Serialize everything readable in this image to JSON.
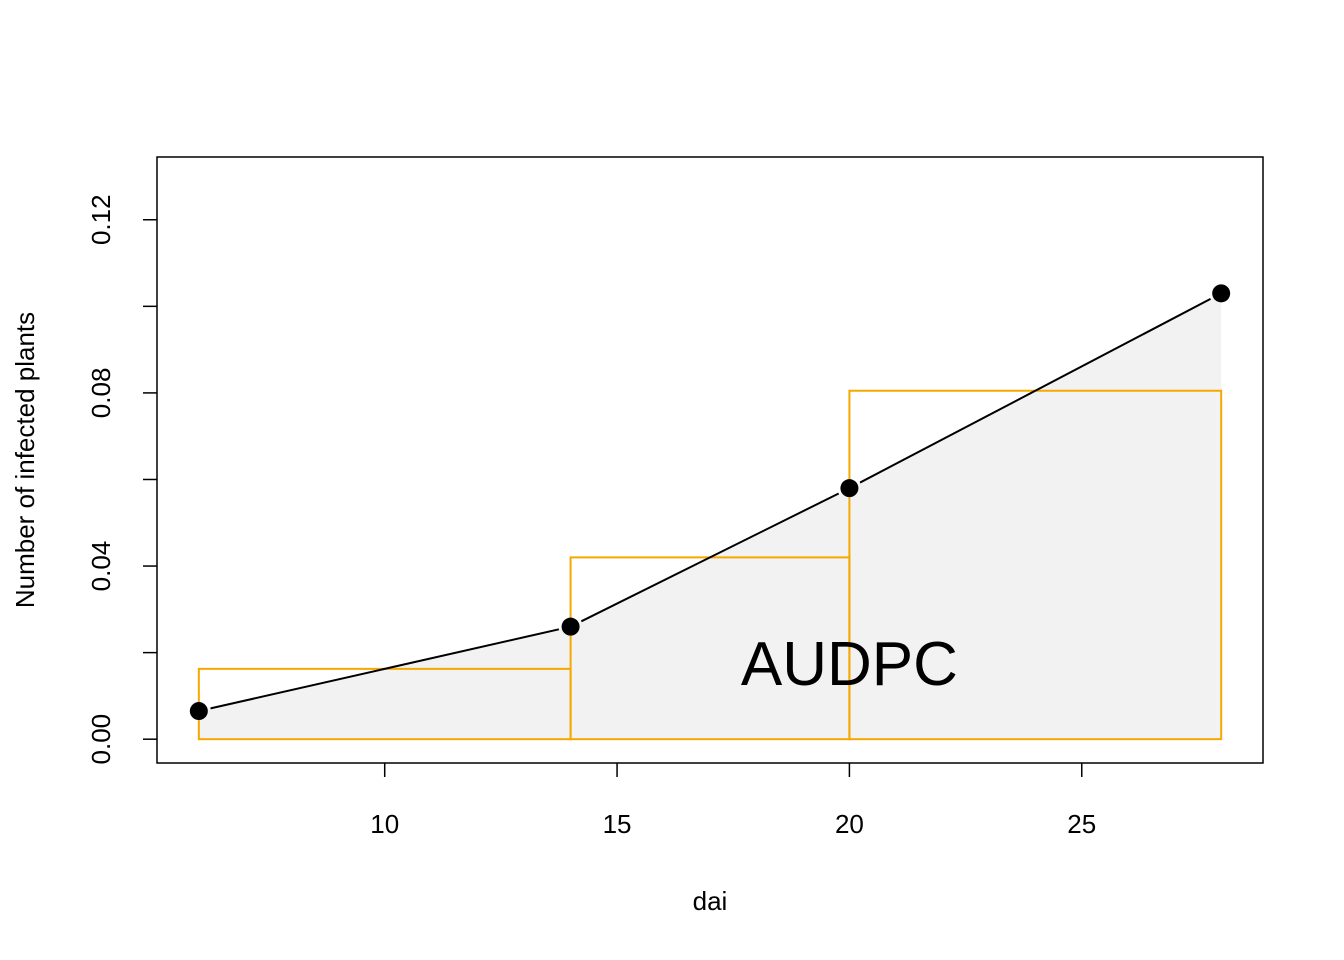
{
  "chart_data": {
    "type": "line",
    "xlabel": "dai",
    "ylabel": "Number of infected plants",
    "xlim": [
      5.1,
      28.9
    ],
    "ylim": [
      -0.0055,
      0.1345
    ],
    "x_ticks": [
      10,
      15,
      20,
      25
    ],
    "y_ticks": [
      "0.00",
      "0.04",
      "0.08",
      "0.12"
    ],
    "y_minor_ticks": [
      0.02,
      0.06,
      0.1
    ],
    "series": [
      {
        "x": [
          6,
          14,
          20,
          28
        ],
        "y": [
          0.0065,
          0.026,
          0.058,
          0.103
        ]
      }
    ],
    "rectangles": [
      {
        "x0": 6,
        "x1": 14,
        "y": 0.01625
      },
      {
        "x0": 14,
        "x1": 20,
        "y": 0.042
      },
      {
        "x0": 20,
        "x1": 28,
        "y": 0.0805
      }
    ],
    "annotation": {
      "text": "AUDPC",
      "x": 20,
      "y": 0.0125
    },
    "colors": {
      "area_fill": "#f2f2f2",
      "rect_stroke": "#f5a800",
      "line": "#000000",
      "points": "#000000"
    },
    "grid": false,
    "legend": "none"
  }
}
